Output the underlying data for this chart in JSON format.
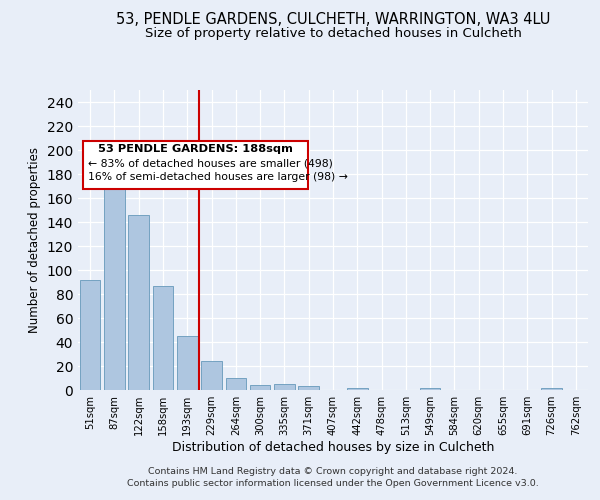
{
  "title1": "53, PENDLE GARDENS, CULCHETH, WARRINGTON, WA3 4LU",
  "title2": "Size of property relative to detached houses in Culcheth",
  "xlabel": "Distribution of detached houses by size in Culcheth",
  "ylabel": "Number of detached properties",
  "bar_labels": [
    "51sqm",
    "87sqm",
    "122sqm",
    "158sqm",
    "193sqm",
    "229sqm",
    "264sqm",
    "300sqm",
    "335sqm",
    "371sqm",
    "407sqm",
    "442sqm",
    "478sqm",
    "513sqm",
    "549sqm",
    "584sqm",
    "620sqm",
    "655sqm",
    "691sqm",
    "726sqm",
    "762sqm"
  ],
  "bar_values": [
    92,
    186,
    146,
    87,
    45,
    24,
    10,
    4,
    5,
    3,
    0,
    2,
    0,
    0,
    2,
    0,
    0,
    0,
    0,
    2,
    0
  ],
  "bar_color": "#aec6e0",
  "bar_edge_color": "#6699bb",
  "vline_x": 4.5,
  "vline_color": "#cc0000",
  "annotation_title": "53 PENDLE GARDENS: 188sqm",
  "annotation_line1": "← 83% of detached houses are smaller (498)",
  "annotation_line2": "16% of semi-detached houses are larger (98) →",
  "annotation_box_color": "#cc0000",
  "ylim": [
    0,
    250
  ],
  "yticks": [
    0,
    20,
    40,
    60,
    80,
    100,
    120,
    140,
    160,
    180,
    200,
    220,
    240
  ],
  "footer1": "Contains HM Land Registry data © Crown copyright and database right 2024.",
  "footer2": "Contains public sector information licensed under the Open Government Licence v3.0.",
  "bg_color": "#e8eef8",
  "grid_color": "#ffffff",
  "title_fontsize": 10.5,
  "subtitle_fontsize": 9.5
}
